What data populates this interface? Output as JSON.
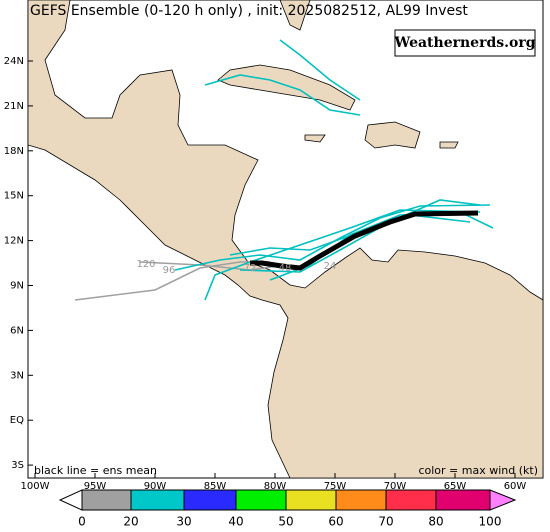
{
  "header": {
    "title": "GEFS Ensemble (0-120 h only) , init: 2025082512, AL99 Invest",
    "watermark": "Weathernerds.org"
  },
  "map": {
    "lat_labels": [
      "24N",
      "21N",
      "18N",
      "15N",
      "12N",
      "9N",
      "6N",
      "3N",
      "EQ",
      "3S"
    ],
    "lon_labels": [
      "100W",
      "95W",
      "90W",
      "85W",
      "80W",
      "75W",
      "70W",
      "65W",
      "60W"
    ],
    "track_labels": [
      "120",
      "96",
      "72",
      "48",
      "24"
    ],
    "legend_left": "black line = ens mean",
    "legend_right": "color = max wind (kt)"
  },
  "colorbar": {
    "labels": [
      "0",
      "20",
      "30",
      "40",
      "50",
      "60",
      "70",
      "80",
      "100"
    ]
  }
}
